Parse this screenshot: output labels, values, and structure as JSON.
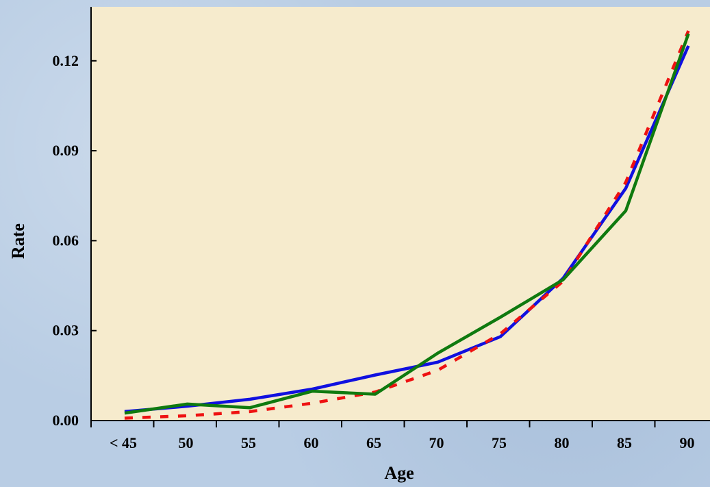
{
  "chart_data": {
    "type": "line",
    "xlabel": "Age",
    "ylabel": "Rate",
    "categories": [
      "< 45",
      "50",
      "55",
      "60",
      "65",
      "70",
      "75",
      "80",
      "85",
      "90"
    ],
    "ylim": [
      0,
      0.138
    ],
    "yticks": [
      0.0,
      0.03,
      0.06,
      0.09,
      0.12
    ],
    "ytick_labels": [
      "0.00",
      "0.03",
      "0.06",
      "0.09",
      "0.12"
    ],
    "grid": false,
    "legend": "none",
    "series": [
      {
        "color": "#1010e0",
        "style": "solid",
        "values": [
          0.003,
          0.0048,
          0.0071,
          0.0105,
          0.0152,
          0.0195,
          0.028,
          0.0475,
          0.0775,
          0.125
        ]
      },
      {
        "color": "#ee1111",
        "style": "dashed",
        "values": [
          0.0008,
          0.0016,
          0.003,
          0.0058,
          0.0095,
          0.0168,
          0.029,
          0.0465,
          0.0795,
          0.13
        ]
      },
      {
        "color": "#0f7a0f",
        "style": "solid",
        "values": [
          0.0025,
          0.0055,
          0.0043,
          0.0098,
          0.0088,
          0.0225,
          0.0345,
          0.047,
          0.07,
          0.129
        ]
      }
    ],
    "colors": {
      "plot_background": "#f6ebcd",
      "page_background": "#b9cde4"
    }
  }
}
